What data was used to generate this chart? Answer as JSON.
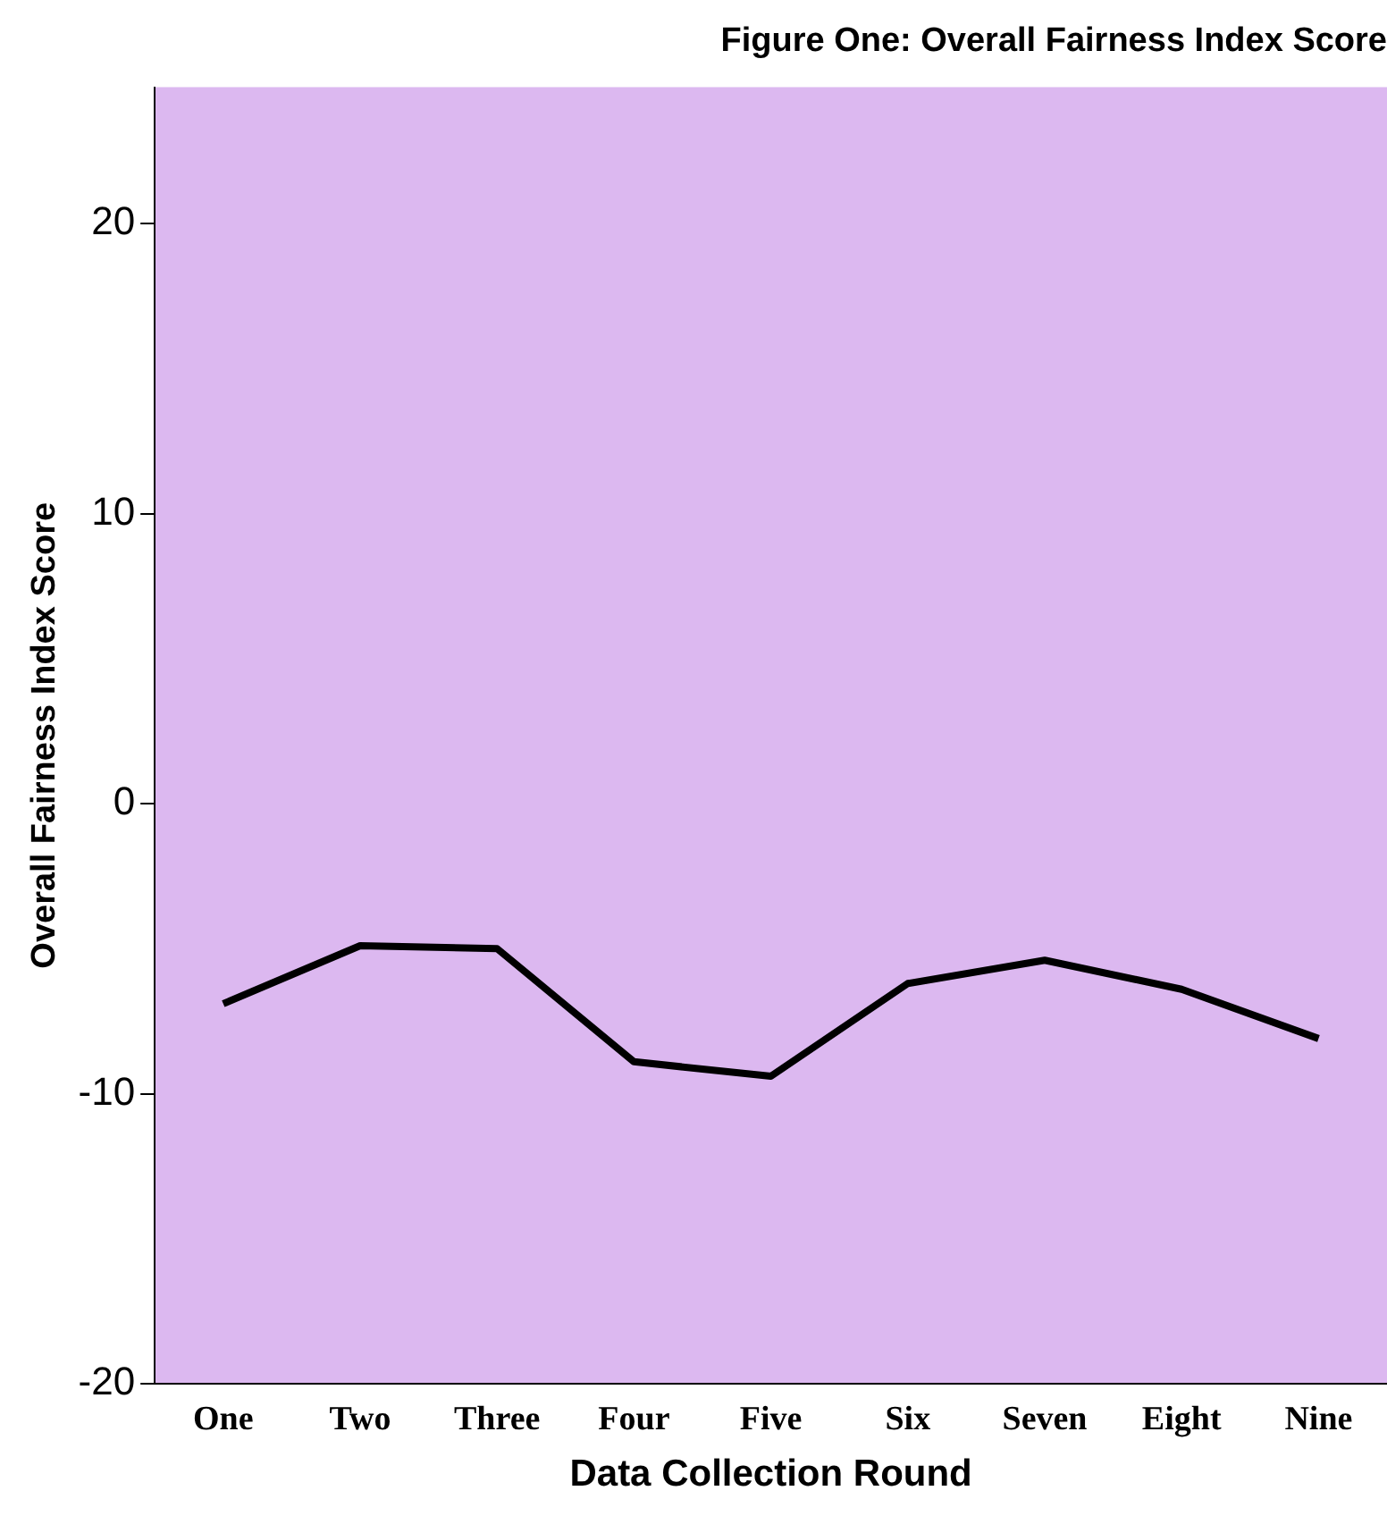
{
  "chart_data": {
    "type": "line",
    "title": "Figure One: Overall Fairness Index Score",
    "xlabel": "Data Collection Round",
    "ylabel": "Overall Fairness Index Score",
    "categories": [
      "One",
      "Two",
      "Three",
      "Four",
      "Five",
      "Six",
      "Seven",
      "Eight",
      "Nine"
    ],
    "series": [
      {
        "color": "#000000",
        "values": [
          -6.9,
          -4.9,
          -5.0,
          -8.9,
          -9.4,
          -6.2,
          -5.4,
          -6.4,
          -8.1
        ]
      }
    ],
    "ylim": [
      -20,
      24.7
    ],
    "yticks": [
      -20,
      -10,
      0,
      10,
      20
    ],
    "grid": false,
    "legend": false,
    "marker": "none",
    "line_style": "solid"
  }
}
